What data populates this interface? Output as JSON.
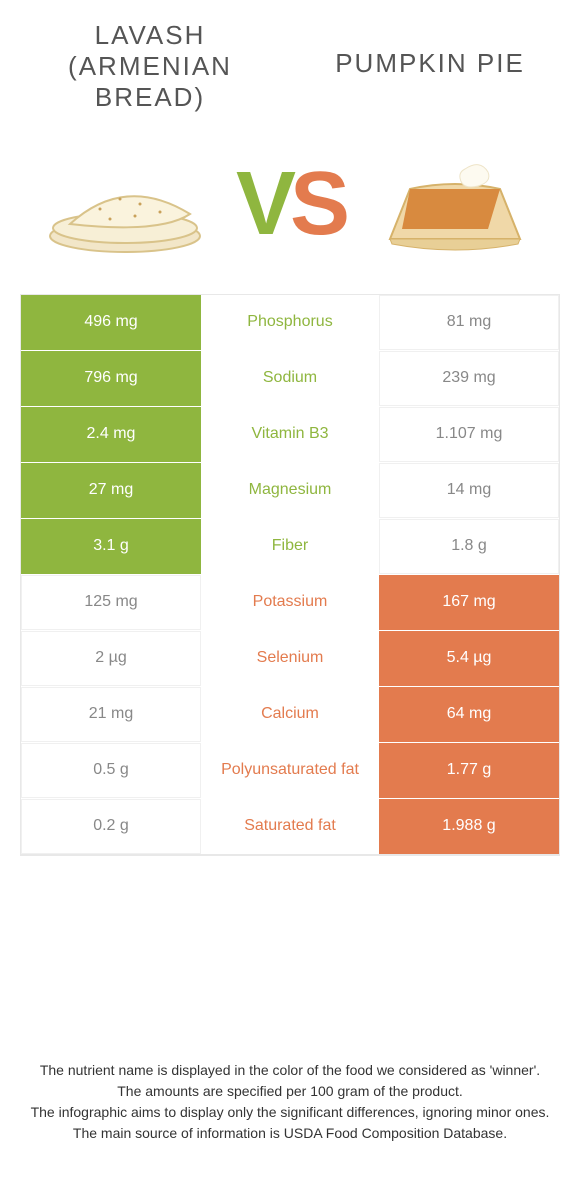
{
  "colors": {
    "green": "#8fb63f",
    "orange": "#e37b4e",
    "grey_text": "#555555",
    "footer_text": "#333333",
    "border": "#e8e8e8",
    "loser_text": "#888888"
  },
  "header": {
    "left_title": "LAVASH (ARMENIAN BREAD)",
    "right_title": "PUMPKIN PIE",
    "vs_v": "V",
    "vs_s": "S"
  },
  "rows": [
    {
      "nutrient": "Phosphorus",
      "left": "496 mg",
      "right": "81 mg",
      "winner": "left"
    },
    {
      "nutrient": "Sodium",
      "left": "796 mg",
      "right": "239 mg",
      "winner": "left"
    },
    {
      "nutrient": "Vitamin B3",
      "left": "2.4 mg",
      "right": "1.107 mg",
      "winner": "left"
    },
    {
      "nutrient": "Magnesium",
      "left": "27 mg",
      "right": "14 mg",
      "winner": "left"
    },
    {
      "nutrient": "Fiber",
      "left": "3.1 g",
      "right": "1.8 g",
      "winner": "left"
    },
    {
      "nutrient": "Potassium",
      "left": "125 mg",
      "right": "167 mg",
      "winner": "right"
    },
    {
      "nutrient": "Selenium",
      "left": "2 µg",
      "right": "5.4 µg",
      "winner": "right"
    },
    {
      "nutrient": "Calcium",
      "left": "21 mg",
      "right": "64 mg",
      "winner": "right"
    },
    {
      "nutrient": "Polyunsaturated fat",
      "left": "0.5 g",
      "right": "1.77 g",
      "winner": "right"
    },
    {
      "nutrient": "Saturated fat",
      "left": "0.2 g",
      "right": "1.988 g",
      "winner": "right"
    }
  ],
  "footer": {
    "line1": "The nutrient name is displayed in the color of the food we considered as 'winner'.",
    "line2": "The amounts are specified per 100 gram of the product.",
    "line3": "The infographic aims to display only the significant differences, ignoring minor ones.",
    "line4": "The main source of information is USDA Food Composition Database."
  }
}
